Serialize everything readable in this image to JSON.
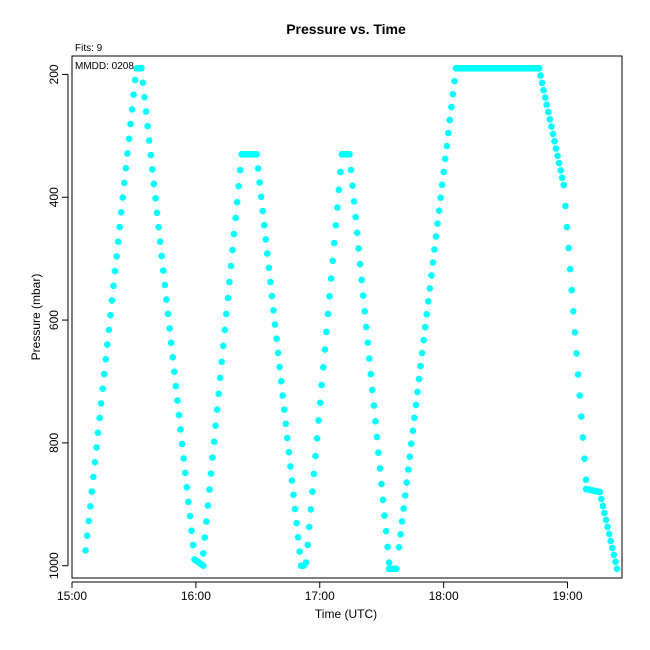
{
  "chart_data": {
    "type": "scatter",
    "title": "Pressure  vs. Time",
    "xlabel": "Time (UTC)",
    "ylabel": "Pressure (mbar)",
    "annotations": {
      "fits": "Fits: 9",
      "mmdd": "MMDD: 0208"
    },
    "x_unit": "hours UTC",
    "xlim": [
      15.0,
      19.44
    ],
    "ylim": [
      1020,
      170
    ],
    "y_reversed": true,
    "xticks": [
      {
        "value": 15,
        "label": "15:00"
      },
      {
        "value": 16,
        "label": "16:00"
      },
      {
        "value": 17,
        "label": "17:00"
      },
      {
        "value": 18,
        "label": "18:00"
      },
      {
        "value": 19,
        "label": "19:00"
      }
    ],
    "yticks": [
      {
        "value": 200,
        "label": "200"
      },
      {
        "value": 400,
        "label": "400"
      },
      {
        "value": 600,
        "label": "600"
      },
      {
        "value": 800,
        "label": "800"
      },
      {
        "value": 1000,
        "label": "1000"
      }
    ],
    "point_color": "#00ffff",
    "grid": false,
    "segments": [
      {
        "x": [
          15.11,
          15.52,
          15.56
        ],
        "y": [
          975,
          190,
          190
        ]
      },
      {
        "x": [
          15.56,
          15.99
        ],
        "y": [
          190,
          990
        ]
      },
      {
        "x": [
          15.99,
          16.06
        ],
        "y": [
          990,
          1000
        ]
      },
      {
        "x": [
          16.06,
          16.37
        ],
        "y": [
          980,
          330
        ]
      },
      {
        "x": [
          16.37,
          16.49
        ],
        "y": [
          330,
          330
        ]
      },
      {
        "x": [
          16.49,
          16.85
        ],
        "y": [
          330,
          1000
        ]
      },
      {
        "x": [
          16.85,
          16.87
        ],
        "y": [
          1000,
          1000
        ]
      },
      {
        "x": [
          16.89,
          17.18
        ],
        "y": [
          995,
          330
        ]
      },
      {
        "x": [
          17.18,
          17.24
        ],
        "y": [
          330,
          330
        ]
      },
      {
        "x": [
          17.24,
          17.56
        ],
        "y": [
          330,
          995
        ]
      },
      {
        "x": [
          17.56,
          17.62
        ],
        "y": [
          1005,
          1005
        ]
      },
      {
        "x": [
          17.64,
          18.1
        ],
        "y": [
          970,
          190
        ]
      },
      {
        "x": [
          18.1,
          18.77
        ],
        "y": [
          190,
          190
        ]
      },
      {
        "x": [
          18.77,
          18.97
        ],
        "y": [
          190,
          380
        ]
      },
      {
        "x": [
          18.97,
          19.15
        ],
        "y": [
          380,
          860
        ]
      },
      {
        "x": [
          19.15,
          19.26
        ],
        "y": [
          875,
          880
        ]
      },
      {
        "x": [
          19.26,
          19.4
        ],
        "y": [
          880,
          1005
        ]
      }
    ]
  }
}
